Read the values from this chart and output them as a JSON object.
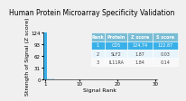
{
  "title": "Human Protein Microarray Specificity Validation",
  "xlabel": "Signal Rank",
  "ylabel": "Strength of Signal (Z score)",
  "xlim": [
    0.5,
    30.5
  ],
  "ylim": [
    0,
    124
  ],
  "yticks": [
    0,
    31,
    62,
    93,
    124
  ],
  "xticks": [
    1,
    10,
    20,
    30
  ],
  "bar_color": "#a8d8f0",
  "highlight_color": "#3ab0e8",
  "bg_color": "#f0f0f0",
  "table_header_bg": "#7bbdd4",
  "table_row1_bg": "#3ab0e8",
  "table_row2_bg": "#e8f4fb",
  "table_row3_bg": "#f8f8f8",
  "table_headers": [
    "Rank",
    "Protein",
    "Z score",
    "S score"
  ],
  "table_data": [
    [
      "1",
      "CD5",
      "124.74",
      "122.87"
    ],
    [
      "2",
      "SLF2",
      "1.87",
      "0.03"
    ],
    [
      "3",
      "IL11RA",
      "1.84",
      "0.14"
    ]
  ],
  "bar_values": [
    124.74,
    1.87,
    1.84
  ],
  "n_bars": 30,
  "title_fontsize": 5.5,
  "axis_fontsize": 4.5,
  "tick_fontsize": 4.0,
  "table_fontsize": 3.5,
  "table_header_fontsize": 3.5
}
